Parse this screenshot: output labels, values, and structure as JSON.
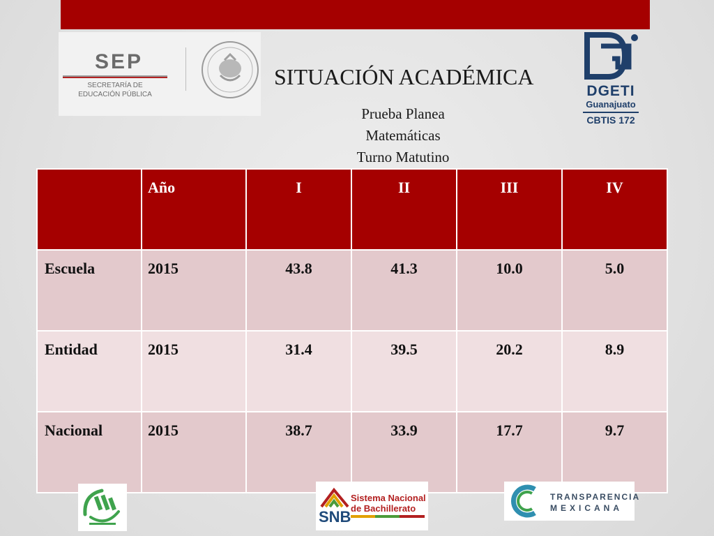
{
  "header": {
    "title": "SITUACIÓN ACADÉMICA",
    "subtitle_lines": [
      "Prueba Planea",
      "Matemáticas",
      "Turno Matutino"
    ]
  },
  "logos": {
    "sep": {
      "name": "SEP",
      "sub_line1": "SECRETARÍA DE",
      "sub_line2": "EDUCACIÓN PÚBLICA",
      "icon": "mexican-coat-of-arms-seal"
    },
    "dgeti": {
      "name": "DGETI",
      "state": "Guanajuato",
      "school": "CBTIS 172",
      "icon": "dgeti-emblem"
    },
    "mexicanos": {
      "icon": "mexicanos-primero-logo"
    },
    "snb": {
      "name_line1": "Sistema Nacional",
      "name_line2": "de Bachillerato",
      "abbr": "SNB",
      "icon": "snb-emblem"
    },
    "transparencia": {
      "line1": "TRANSPARENCIA",
      "line2": "MEXICANA",
      "icon": "transparencia-circle-logo"
    }
  },
  "table": {
    "columns": [
      "",
      "Año",
      "I",
      "II",
      "III",
      "IV"
    ],
    "rows": [
      {
        "label": "Escuela",
        "year": "2015",
        "values": [
          "43.8",
          "41.3",
          "10.0",
          "5.0"
        ]
      },
      {
        "label": "Entidad",
        "year": "2015",
        "values": [
          "31.4",
          "39.5",
          "20.2",
          "8.9"
        ]
      },
      {
        "label": "Nacional",
        "year": "2015",
        "values": [
          "38.7",
          "33.9",
          "17.7",
          "9.7"
        ]
      }
    ]
  },
  "colors": {
    "accent_red": "#a50000",
    "row_dark": "#e3c9cc",
    "row_light": "#f0dfe1",
    "brand_navy": "#1f3f6a"
  }
}
